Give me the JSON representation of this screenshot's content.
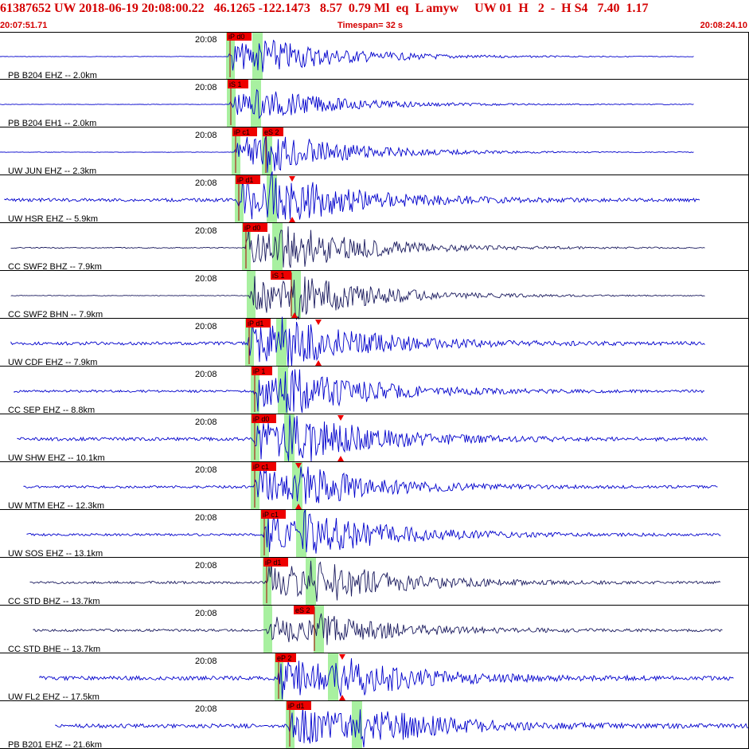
{
  "header": {
    "event_id": "61387652",
    "network": "UW",
    "origin_time": "2018-06-19 20:08:00.22",
    "latitude": "46.1265",
    "longitude": "-122.1473",
    "depth": "8.57",
    "magnitude": "0.79 Ml",
    "event_type": "eq",
    "flag": "L",
    "author": "amyw",
    "summary": "UW 01  H   2  -  H S4",
    "value_a": "7.40",
    "value_b": "1.17",
    "start_time": "20:07:51.71",
    "timespan_label": "Timespan=  32 s",
    "end_time": "20:08:24.10"
  },
  "colors": {
    "header_red": "#d40000",
    "trace_blue": "#0000cc",
    "trace_dark": "#1a1a5e",
    "pick_red": "#ee0000",
    "window_green": "#a8f0a0"
  },
  "traces": [
    {
      "label": "PB B204 EHZ -- 2.0km",
      "time": "20:08",
      "color": "blue",
      "picks": [
        {
          "text": "iP d0",
          "side": "left"
        }
      ],
      "arrows": []
    },
    {
      "label": "PB B204 EH1 -- 2.0km",
      "time": "20:08",
      "color": "blue",
      "picks": [
        {
          "text": "iS 1",
          "side": "left"
        }
      ],
      "arrows": []
    },
    {
      "label": "UW JUN EHZ -- 2.3km",
      "time": "20:08",
      "color": "blue",
      "picks": [
        {
          "text": "iP c1",
          "side": "left"
        },
        {
          "text": "eS 2",
          "side": "left"
        }
      ],
      "arrows": []
    },
    {
      "label": "UW HSR EHZ -- 5.9km",
      "time": "20:08",
      "color": "blue",
      "picks": [
        {
          "text": "iP d1",
          "side": "left"
        }
      ],
      "arrows": [
        "down",
        "up"
      ]
    },
    {
      "label": "CC SWF2 BHZ -- 7.9km",
      "time": "20:08",
      "color": "dark",
      "picks": [
        {
          "text": "iP d0",
          "side": "left"
        }
      ],
      "arrows": []
    },
    {
      "label": "CC SWF2 BHN -- 7.9km",
      "time": "20:08",
      "color": "dark",
      "picks": [
        {
          "text": "iS 1",
          "side": "right"
        }
      ],
      "arrows": [
        "up"
      ]
    },
    {
      "label": "UW CDF EHZ -- 7.9km",
      "time": "20:08",
      "color": "blue",
      "picks": [
        {
          "text": "iP d1",
          "side": "left"
        }
      ],
      "arrows": [
        "down",
        "up"
      ]
    },
    {
      "label": "CC SEP EHZ -- 8.8km",
      "time": "20:08",
      "color": "blue",
      "picks": [
        {
          "text": "iP 1",
          "side": "left"
        }
      ],
      "arrows": []
    },
    {
      "label": "UW SHW EHZ -- 10.1km",
      "time": "20:08",
      "color": "blue",
      "picks": [
        {
          "text": "iP d0",
          "side": "left"
        }
      ],
      "arrows": [
        "down",
        "up"
      ]
    },
    {
      "label": "UW MTM EHZ -- 12.3km",
      "time": "20:08",
      "color": "blue",
      "picks": [
        {
          "text": "iP c1",
          "side": "left"
        }
      ],
      "arrows": [
        "down",
        "up"
      ]
    },
    {
      "label": "UW SOS EHZ -- 13.1km",
      "time": "20:08",
      "color": "blue",
      "picks": [
        {
          "text": "iP c1",
          "side": "left"
        }
      ],
      "arrows": []
    },
    {
      "label": "CC STD BHZ -- 13.7km",
      "time": "20:08",
      "color": "dark",
      "picks": [
        {
          "text": "iP d1",
          "side": "left"
        }
      ],
      "arrows": []
    },
    {
      "label": "CC STD BHE -- 13.7km",
      "time": "20:08",
      "color": "dark",
      "picks": [
        {
          "text": "eS 2",
          "side": "right"
        }
      ],
      "arrows": []
    },
    {
      "label": "UW FL2 EHZ -- 17.5km",
      "time": "20:08",
      "color": "blue",
      "picks": [
        {
          "text": "eP 2",
          "side": "left"
        }
      ],
      "arrows": [
        "down",
        "up"
      ]
    },
    {
      "label": "PB B201 EHZ -- 21.6km",
      "time": "20:08",
      "color": "blue",
      "picks": [
        {
          "text": "iP d1",
          "side": "left"
        }
      ],
      "arrows": []
    }
  ]
}
